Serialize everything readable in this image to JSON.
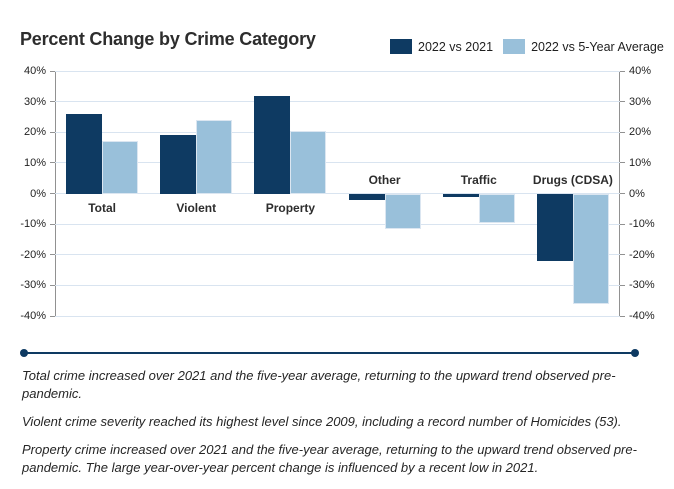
{
  "header": {
    "title": "Percent Change by Crime Category"
  },
  "legend": [
    {
      "label": "2022 vs 2021",
      "color": "#0e3a62"
    },
    {
      "label": "2022 vs 5-Year Average",
      "color": "#99c0da"
    }
  ],
  "chart_data": {
    "type": "bar",
    "title": "Percent Change by Crime Category",
    "categories": [
      "Total",
      "Violent",
      "Property",
      "Other",
      "Traffic",
      "Drugs (CDSA)"
    ],
    "series": [
      {
        "name": "2022 vs 2021",
        "color": "#0e3a62",
        "values": [
          26,
          19,
          32,
          -2,
          -1,
          -22
        ]
      },
      {
        "name": "2022 vs 5-Year Average",
        "color": "#99c0da",
        "values": [
          17,
          24,
          20.5,
          -11.5,
          -9.5,
          -36
        ]
      }
    ],
    "xlabel": "",
    "ylabel": "",
    "ylim": [
      -40,
      40
    ],
    "grid": true,
    "legend_position": "top-right",
    "y_axis_sides": [
      "left",
      "right"
    ],
    "y_ticks": [
      {
        "value": 40,
        "label": "40%"
      },
      {
        "value": 30,
        "label": "30%"
      },
      {
        "value": 20,
        "label": "20%"
      },
      {
        "value": 10,
        "label": "10%"
      },
      {
        "value": 0,
        "label": "0%"
      },
      {
        "value": -10,
        "label": "-10%"
      },
      {
        "value": -20,
        "label": "-20%"
      },
      {
        "value": -30,
        "label": "-30%"
      },
      {
        "value": -40,
        "label": "-40%"
      }
    ]
  },
  "footer": {
    "notes": [
      "Total crime increased over 2021 and the five-year average, returning to the upward trend observed pre-pandemic.",
      "Violent crime severity reached its highest level since 2009, including a record number of Homicides (53).",
      "Property crime increased over 2021 and the five-year average, returning to the upward trend observed pre-pandemic. The large year-over-year percent change is influenced by a recent low in 2021."
    ]
  }
}
